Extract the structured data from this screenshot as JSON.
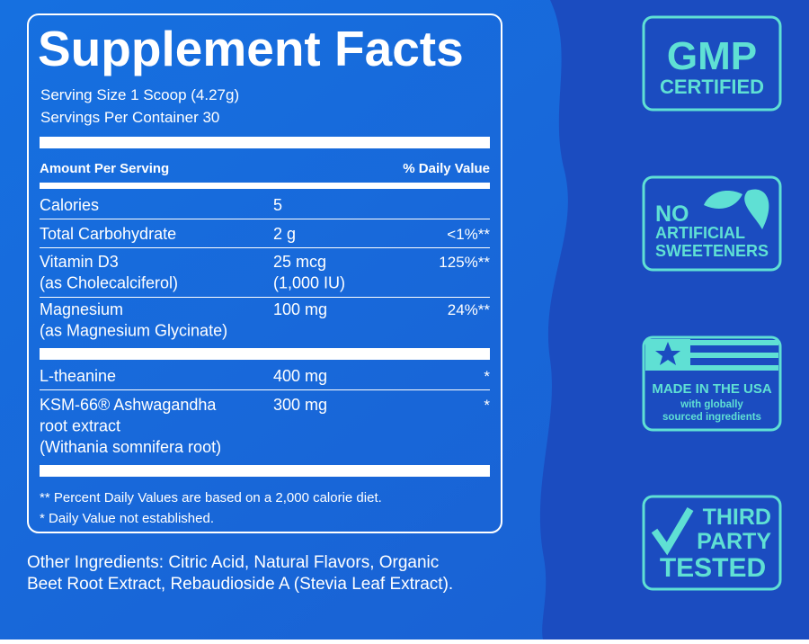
{
  "panel": {
    "title": "Supplement Facts",
    "serving_size": "Serving Size 1 Scoop (4.27g)",
    "servings_per_container": "Servings Per Container 30",
    "header": {
      "amount": "Amount Per Serving",
      "daily_value": "% Daily Value"
    },
    "rows": [
      {
        "name": [
          "Calories"
        ],
        "amount": [
          "5"
        ],
        "dv": ""
      },
      {
        "name": [
          "Total Carbohydrate"
        ],
        "amount": [
          "2 g"
        ],
        "dv": "<1%**"
      },
      {
        "name": [
          "Vitamin D3",
          "(as Cholecalciferol)"
        ],
        "amount": [
          "25 mcg",
          "(1,000 IU)"
        ],
        "dv": "125%**"
      },
      {
        "name": [
          "Magnesium",
          "(as Magnesium Glycinate)"
        ],
        "amount": [
          "100 mg"
        ],
        "dv": "24%**"
      },
      {
        "name": [
          "L-theanine"
        ],
        "amount": [
          "400 mg"
        ],
        "dv": "*"
      },
      {
        "name": [
          "KSM-66® Ashwagandha",
          "root extract",
          "(Withania somnifera root)"
        ],
        "amount": [
          "300 mg"
        ],
        "dv": "*"
      }
    ],
    "footnotes": [
      "** Percent Daily Values are based on a 2,000 calorie diet.",
      "* Daily Value not established."
    ]
  },
  "other_ingredients": [
    "Other Ingredients: Citric Acid, Natural Flavors, Organic",
    "Beet Root Extract, Rebaudioside A (Stevia Leaf Extract)."
  ],
  "badges": [
    [
      "GMP",
      "CERTIFIED"
    ],
    [
      "NO",
      "ARTIFICIAL",
      "SWEETENERS"
    ],
    [
      "MADE IN THE USA",
      "with globally",
      "sourced ingredients"
    ],
    [
      "THIRD",
      "PARTY",
      "TESTED"
    ]
  ]
}
